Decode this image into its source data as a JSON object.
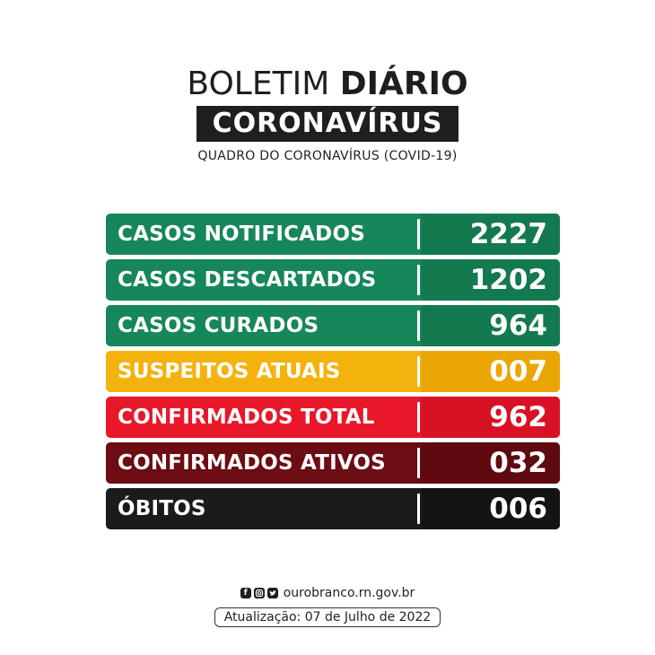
{
  "header": {
    "title_light": "BOLETIM",
    "title_bold": "DIÁRIO",
    "banner": "CORONAVÍRUS",
    "subtitle": "QUADRO DO CORONAVÍRUS (COVID-19)"
  },
  "rows": [
    {
      "label": "CASOS NOTIFICADOS",
      "value": "2227",
      "color": "#16875a",
      "value_color": "#13794f"
    },
    {
      "label": "CASOS DESCARTADOS",
      "value": "1202",
      "color": "#16875a",
      "value_color": "#13794f"
    },
    {
      "label": "CASOS CURADOS",
      "value": "964",
      "color": "#16875a",
      "value_color": "#13794f"
    },
    {
      "label": "SUSPEITOS ATUAIS",
      "value": "007",
      "color": "#f4b20c",
      "value_color": "#eba606"
    },
    {
      "label": "CONFIRMADOS TOTAL",
      "value": "962",
      "color": "#e8172a",
      "value_color": "#d81224"
    },
    {
      "label": "CONFIRMADOS ATIVOS",
      "value": "032",
      "color": "#6b0d13",
      "value_color": "#5e0a10"
    },
    {
      "label": "ÓBITOS",
      "value": "006",
      "color": "#1b1b1b",
      "value_color": "#141414"
    }
  ],
  "footer": {
    "social_icons": [
      "facebook-icon",
      "instagram-icon",
      "twitter-icon"
    ],
    "website": "ourobranco.rn.gov.br",
    "update": "Atualização: 07 de Julho de 2022"
  }
}
